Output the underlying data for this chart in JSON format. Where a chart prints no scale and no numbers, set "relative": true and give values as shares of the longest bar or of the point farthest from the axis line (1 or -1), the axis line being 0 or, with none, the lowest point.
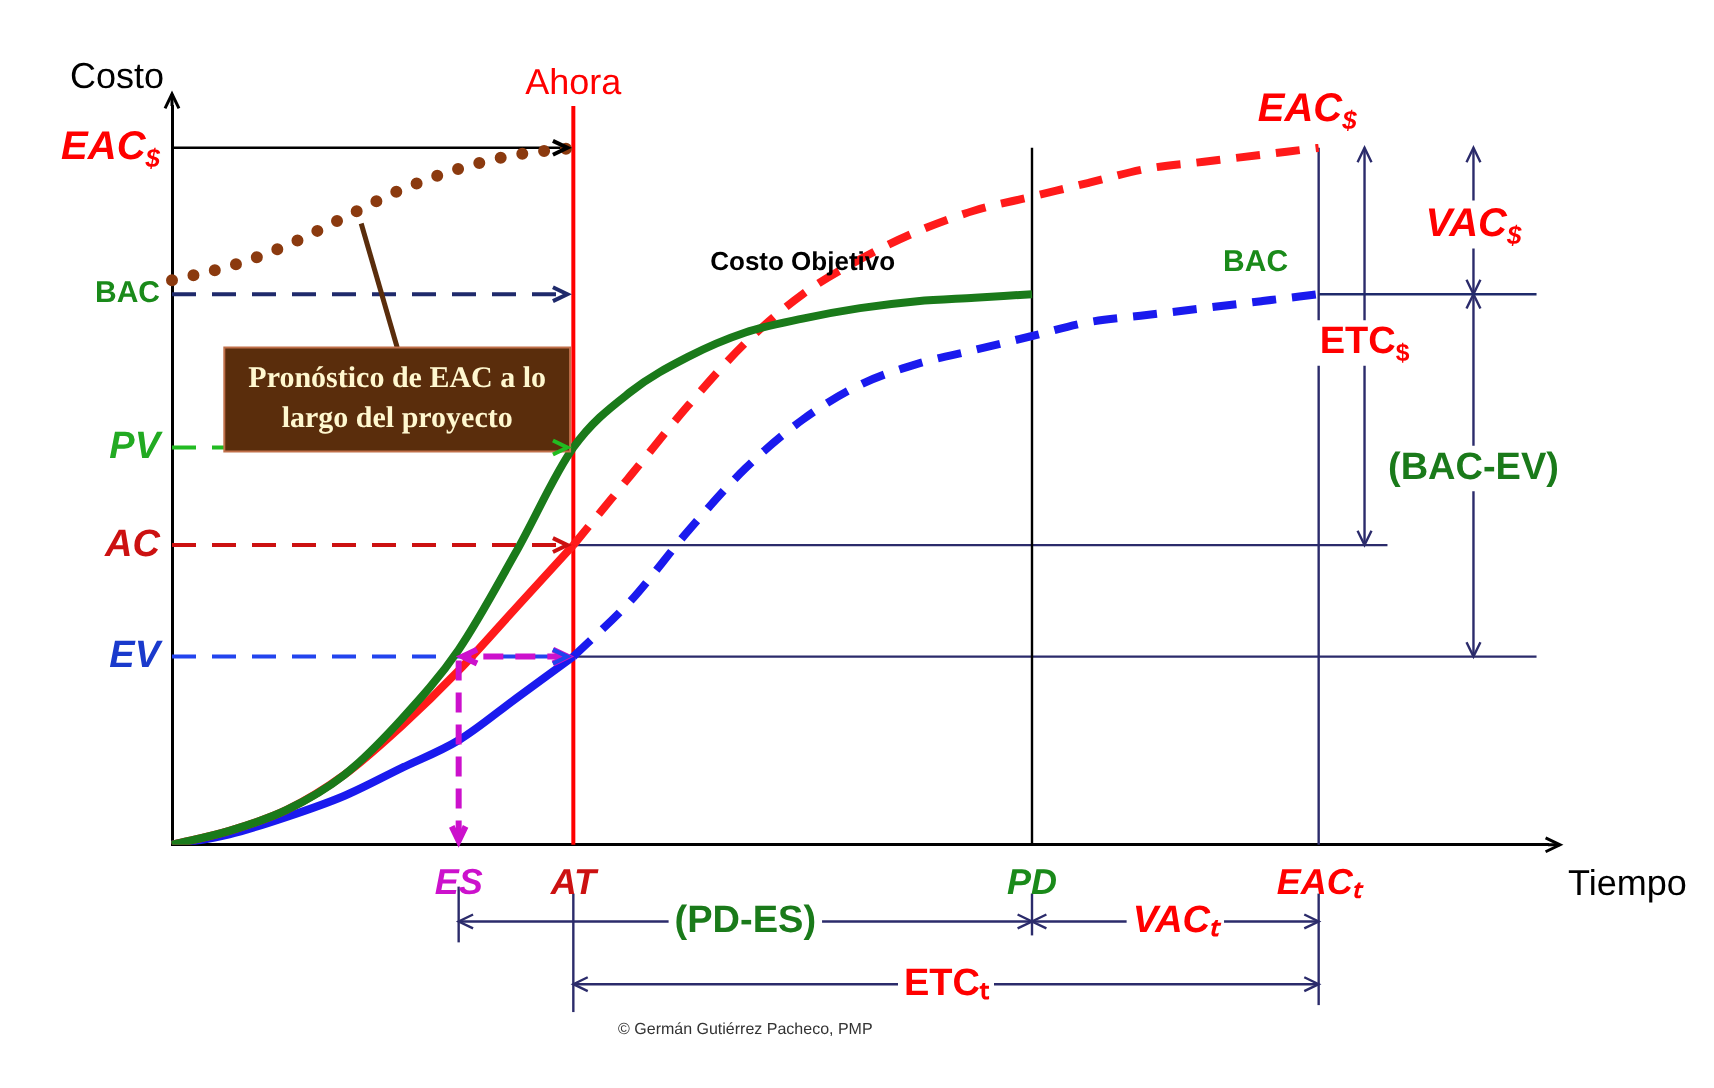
{
  "chart_data": {
    "type": "line",
    "relative": true,
    "xlabel": "Tiempo",
    "ylabel": "Costo",
    "categories": [
      null,
      null,
      null,
      null,
      null,
      "ES",
      null,
      "AT",
      null,
      null,
      null,
      null,
      null,
      null,
      null,
      "PD",
      null,
      null,
      null,
      null,
      "EACₜ",
      null,
      null,
      null,
      null
    ],
    "grid": false,
    "legend": false,
    "marker": "none",
    "series": [
      {
        "color": "#1a7a1a",
        "line_style": "solid",
        "values": [
          0,
          0.02,
          0.05,
          0.1,
          0.18,
          0.28,
          0.42,
          0.57,
          0.65,
          0.7,
          0.735,
          0.755,
          0.77,
          0.78,
          0.785,
          0.79,
          null,
          null,
          null,
          null,
          null,
          null,
          null,
          null,
          null
        ]
      },
      {
        "color": "#ff1a1a",
        "line_style": "solid",
        "values": [
          0,
          0.02,
          0.05,
          0.1,
          0.17,
          0.25,
          0.34,
          0.43,
          null,
          null,
          null,
          null,
          null,
          null,
          null,
          null,
          null,
          null,
          null,
          null,
          null,
          null,
          null,
          null,
          null
        ]
      },
      {
        "color": "#ff1a1a",
        "line_style": "dashed",
        "values": [
          null,
          null,
          null,
          null,
          null,
          null,
          null,
          0.43,
          0.53,
          0.63,
          0.72,
          0.79,
          0.84,
          0.88,
          0.91,
          0.93,
          0.95,
          0.97,
          0.98,
          0.99,
          1,
          null,
          null,
          null,
          null
        ]
      },
      {
        "color": "#1a1aee",
        "line_style": "solid",
        "values": [
          0,
          0.015,
          0.04,
          0.07,
          0.11,
          0.15,
          0.21,
          0.27,
          null,
          null,
          null,
          null,
          null,
          null,
          null,
          null,
          null,
          null,
          null,
          null,
          null,
          null,
          null,
          null,
          null
        ]
      },
      {
        "color": "#1a1aee",
        "line_style": "dashed",
        "values": [
          null,
          null,
          null,
          null,
          null,
          null,
          null,
          0.27,
          0.35,
          0.45,
          0.54,
          0.61,
          0.66,
          0.69,
          0.71,
          0.73,
          0.75,
          0.76,
          0.77,
          0.78,
          0.79,
          null,
          null,
          null,
          null
        ]
      },
      {
        "color": "#8b3a0f",
        "line_style": "dotted",
        "values": [
          0.81,
          0.83,
          0.86,
          0.9,
          0.94,
          0.97,
          0.99,
          1,
          null,
          null,
          null,
          null,
          null,
          null,
          null,
          null,
          null,
          null,
          null,
          null,
          null,
          null,
          null,
          null,
          null
        ]
      }
    ],
    "ref_lines": [
      {
        "axis": "y",
        "value": 1,
        "label": "EAC$_{$}$",
        "color": "#000000",
        "line_style": "solid"
      },
      {
        "axis": "y",
        "value": 0.79,
        "label": "BAC",
        "color": "#1f2a6b",
        "line_style": "dashed"
      },
      {
        "axis": "y",
        "value": 0.57,
        "label": "PV",
        "color": "#22bb22",
        "line_style": "dashed"
      },
      {
        "axis": "y",
        "value": 0.43,
        "label": "AC",
        "color": "#cc1111",
        "line_style": "dashed"
      },
      {
        "axis": "y",
        "value": 0.27,
        "label": "EV",
        "color": "#2244ee",
        "line_style": "dashed"
      },
      {
        "axis": "y",
        "value": 0.43,
        "color": "#2b2b6b",
        "line_style": "solid"
      },
      {
        "axis": "y",
        "value": 0.27,
        "color": "#2b2b6b",
        "line_style": "solid"
      },
      {
        "axis": "x",
        "value": "AT",
        "label": "Ahora",
        "color": "#ff0000",
        "line_style": "solid"
      },
      {
        "axis": "x",
        "value": "PD",
        "color": "#000000",
        "line_style": "solid"
      },
      {
        "axis": "x",
        "value": "EACₜ",
        "color": "#2b2b6b",
        "line_style": "solid"
      }
    ],
    "annotations": [
      "Pronóstico de EAC a lo largo del proyecto",
      "EAC$_{$}$",
      "BAC",
      "VAC$_{$}$",
      "ETC$_{$}$",
      "(BAC-EV)",
      "(PD-ES)",
      "VACₜ",
      "ETCₜ",
      "© Germán Gutiérrez Pacheco, PMP",
      "Costo Objetivo"
    ]
  }
}
